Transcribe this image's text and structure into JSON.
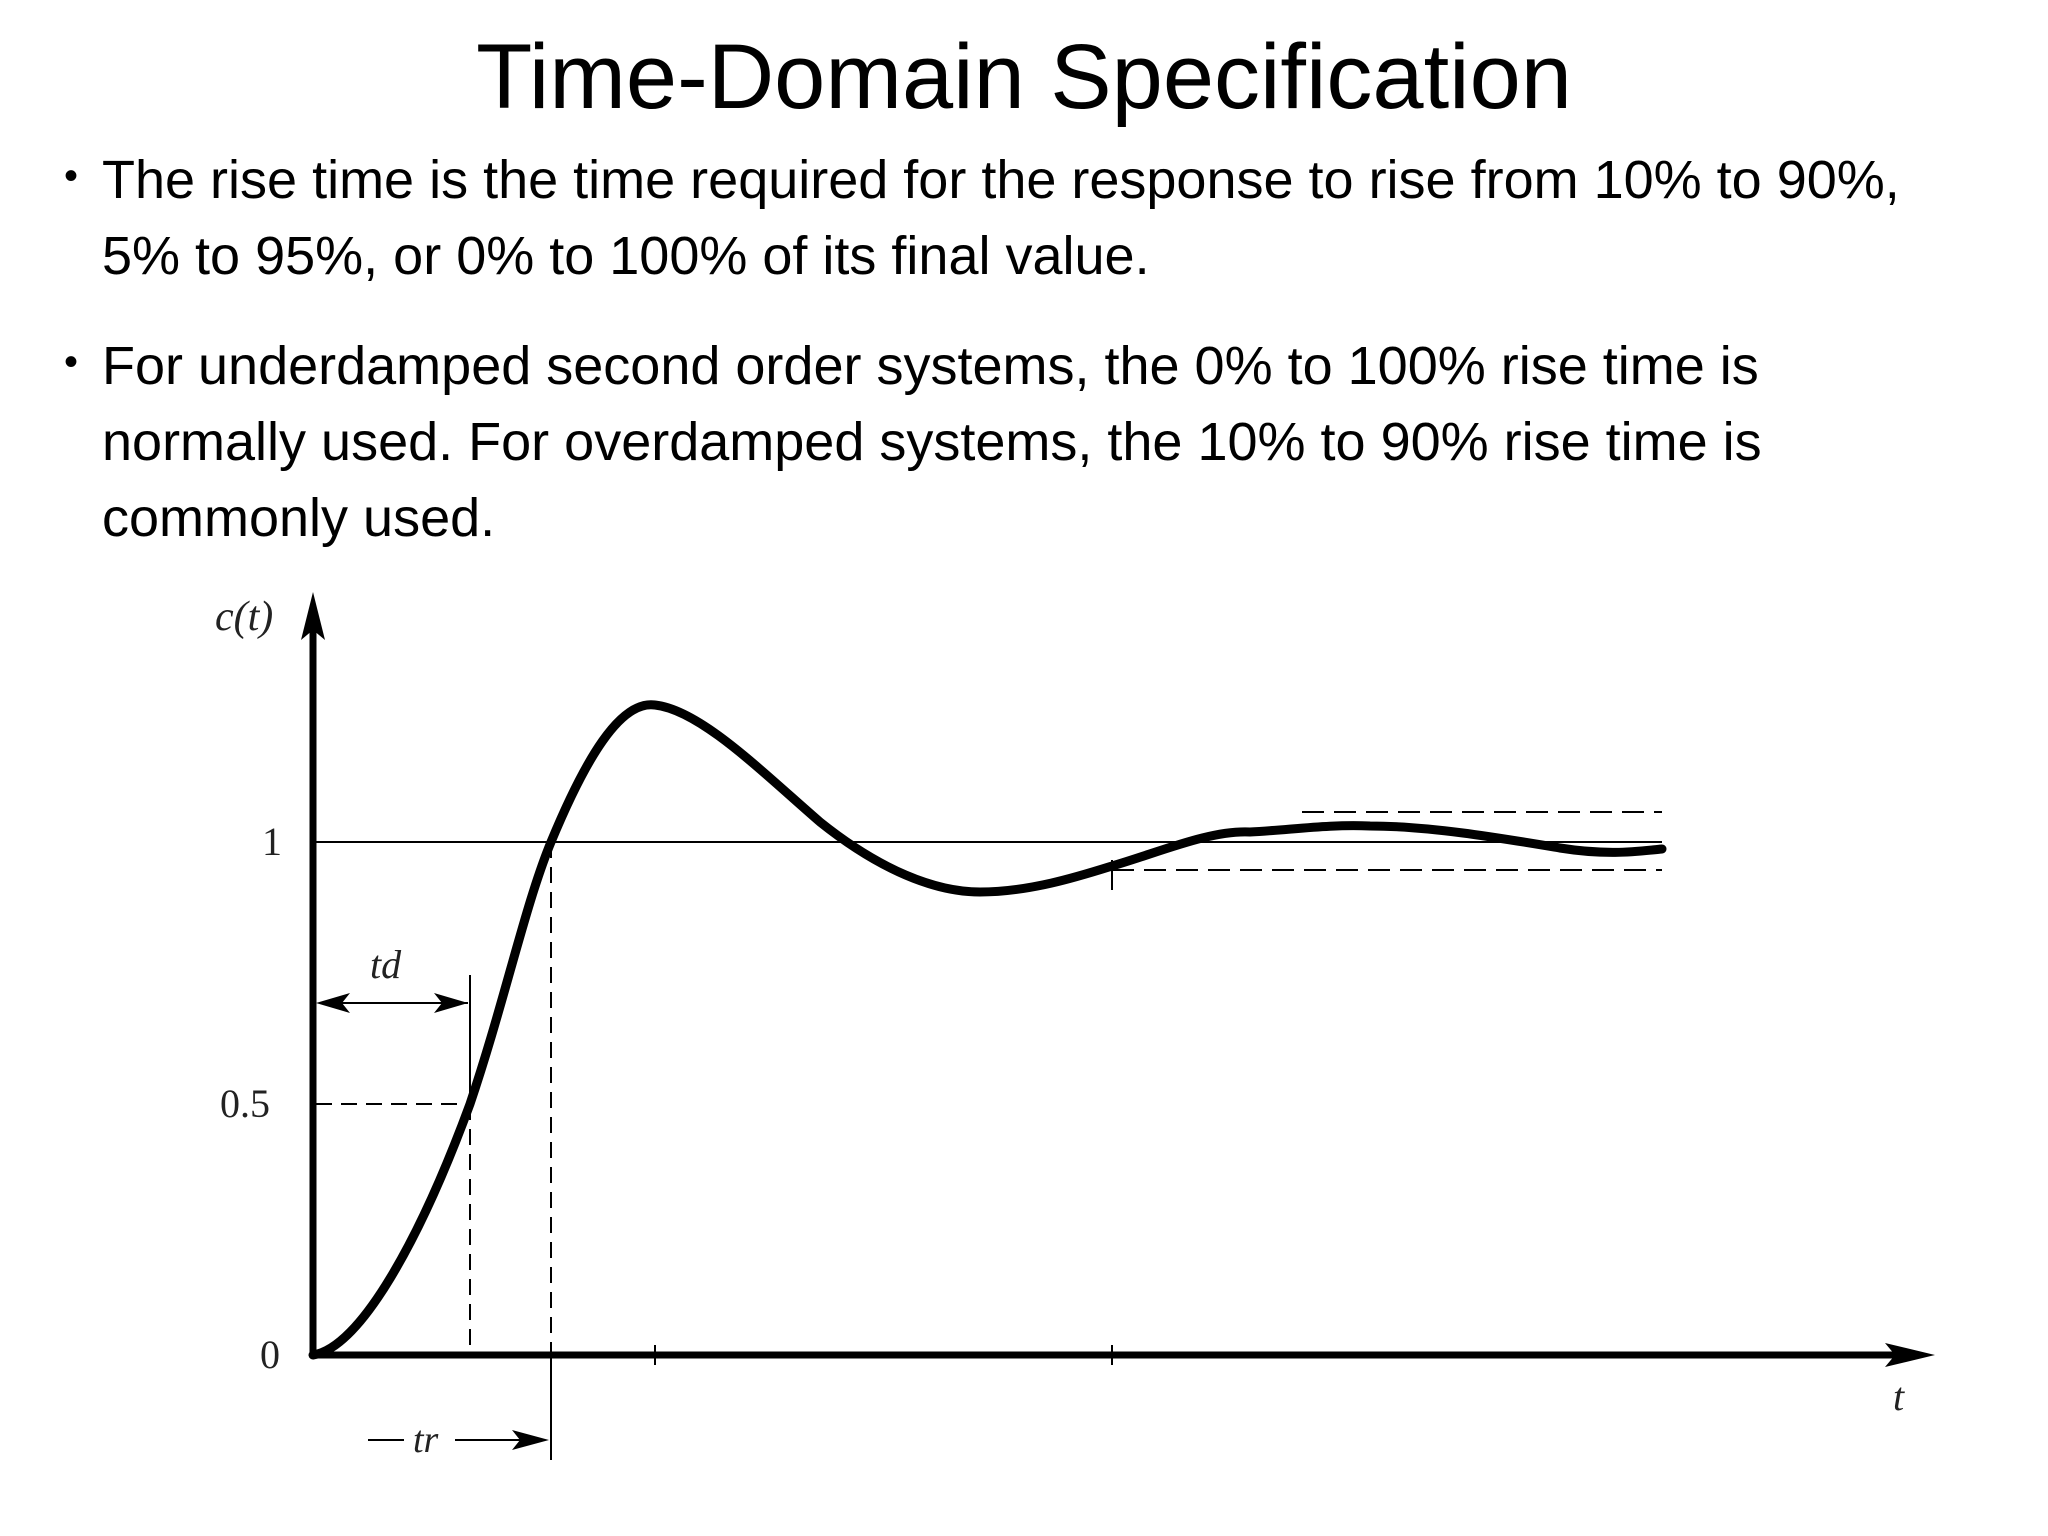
{
  "title": "Time-Domain Specification",
  "bullets": [
    {
      "text": "The rise time is the time required for the response to rise from 10% to 90%, 5% to 95%, or 0% to 100% of its final value."
    },
    {
      "text": "For underdamped second order systems, the 0% to 100% rise time is normally used. For overdamped systems, the 10% to 90% rise time is commonly used."
    }
  ],
  "figure": {
    "y_axis_label": "c(t)",
    "x_axis_label": "t",
    "y_ticks": [
      "1",
      "0.5",
      "0"
    ],
    "delay_time_label": "td",
    "rise_time_label": "tr"
  },
  "colors": {
    "text": "#000000",
    "background": "#ffffff",
    "curve": "#000000"
  }
}
